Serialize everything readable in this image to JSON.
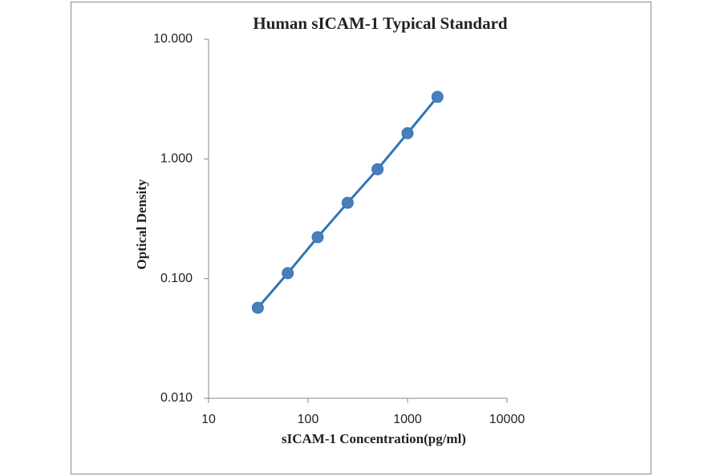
{
  "chart_data": {
    "type": "line",
    "title": "Human sICAM-1 Typical Standard",
    "x_label": "sICAM-1 Concentration(pg/ml)",
    "y_label": "Optical Density",
    "x": [
      31.25,
      62.5,
      125,
      250,
      500,
      1000,
      2000
    ],
    "values": [
      0.057,
      0.111,
      0.222,
      0.43,
      0.82,
      1.64,
      3.3
    ],
    "color": "#2e75b6",
    "marker_color": "#4a7ebb",
    "markers": true,
    "xscale": "log",
    "yscale": "log",
    "xlim": [
      10,
      10000
    ],
    "xticks": [
      10,
      100,
      1000,
      10000
    ],
    "ylim": [
      0.01,
      10
    ],
    "yticks": [
      {
        "value": 0.01,
        "label": "0.010"
      },
      {
        "value": 0.1,
        "label": "0.100"
      },
      {
        "value": 1,
        "label": "1.000"
      },
      {
        "value": 10,
        "label": "10.000"
      }
    ],
    "grid": false
  }
}
